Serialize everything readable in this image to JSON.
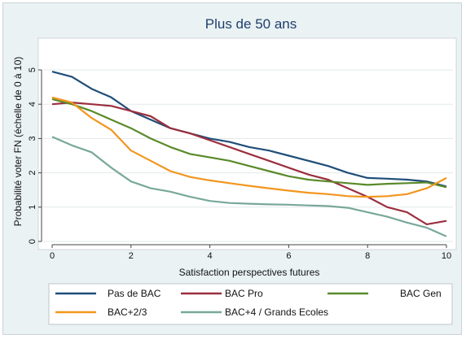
{
  "chart_data": {
    "type": "line",
    "title": "Plus de 50 ans",
    "xlabel": "Satisfaction perspectives futures",
    "ylabel": "Probabilité voter FN (échelle de 0 à 10)",
    "xlim": [
      0,
      10
    ],
    "ylim": [
      0,
      5
    ],
    "xticks": [
      "0",
      "2",
      "4",
      "6",
      "8",
      "10"
    ],
    "yticks": [
      "0",
      "1",
      "2",
      "3",
      "4",
      "5"
    ],
    "grid": "horizontal",
    "legend_position": "bottom",
    "x": [
      0,
      0.5,
      1,
      1.5,
      2,
      2.5,
      3,
      3.5,
      4,
      4.5,
      5,
      5.5,
      6,
      6.5,
      7,
      7.5,
      8,
      8.5,
      9,
      9.5,
      10
    ],
    "series": [
      {
        "name": "Pas de BAC",
        "color": "#1f4e79",
        "values": [
          4.95,
          4.8,
          4.45,
          4.2,
          3.8,
          3.55,
          3.3,
          3.15,
          3.0,
          2.9,
          2.75,
          2.65,
          2.5,
          2.35,
          2.2,
          2.0,
          1.85,
          1.83,
          1.8,
          1.75,
          1.6
        ]
      },
      {
        "name": "BAC Pro",
        "color": "#9b2f3f",
        "values": [
          4.0,
          4.05,
          4.0,
          3.95,
          3.8,
          3.65,
          3.3,
          3.15,
          2.95,
          2.75,
          2.55,
          2.35,
          2.15,
          1.95,
          1.8,
          1.55,
          1.3,
          1.0,
          0.85,
          0.5,
          0.6
        ]
      },
      {
        "name": "BAC Gen",
        "color": "#5a8a2a",
        "values": [
          4.15,
          4.0,
          3.8,
          3.55,
          3.3,
          3.0,
          2.75,
          2.55,
          2.45,
          2.35,
          2.2,
          2.05,
          1.9,
          1.8,
          1.75,
          1.7,
          1.65,
          1.68,
          1.7,
          1.72,
          1.58
        ]
      },
      {
        "name": "BAC+2/3",
        "color": "#f2961f",
        "values": [
          4.2,
          4.05,
          3.6,
          3.25,
          2.65,
          2.35,
          2.05,
          1.88,
          1.78,
          1.7,
          1.62,
          1.55,
          1.48,
          1.42,
          1.38,
          1.32,
          1.3,
          1.32,
          1.38,
          1.55,
          1.85
        ]
      },
      {
        "name": "BAC+4 / Grands Ecoles",
        "color": "#78a89a",
        "values": [
          3.05,
          2.8,
          2.6,
          2.15,
          1.75,
          1.55,
          1.45,
          1.3,
          1.18,
          1.12,
          1.1,
          1.08,
          1.07,
          1.05,
          1.03,
          0.98,
          0.85,
          0.72,
          0.55,
          0.4,
          0.15
        ]
      }
    ]
  }
}
